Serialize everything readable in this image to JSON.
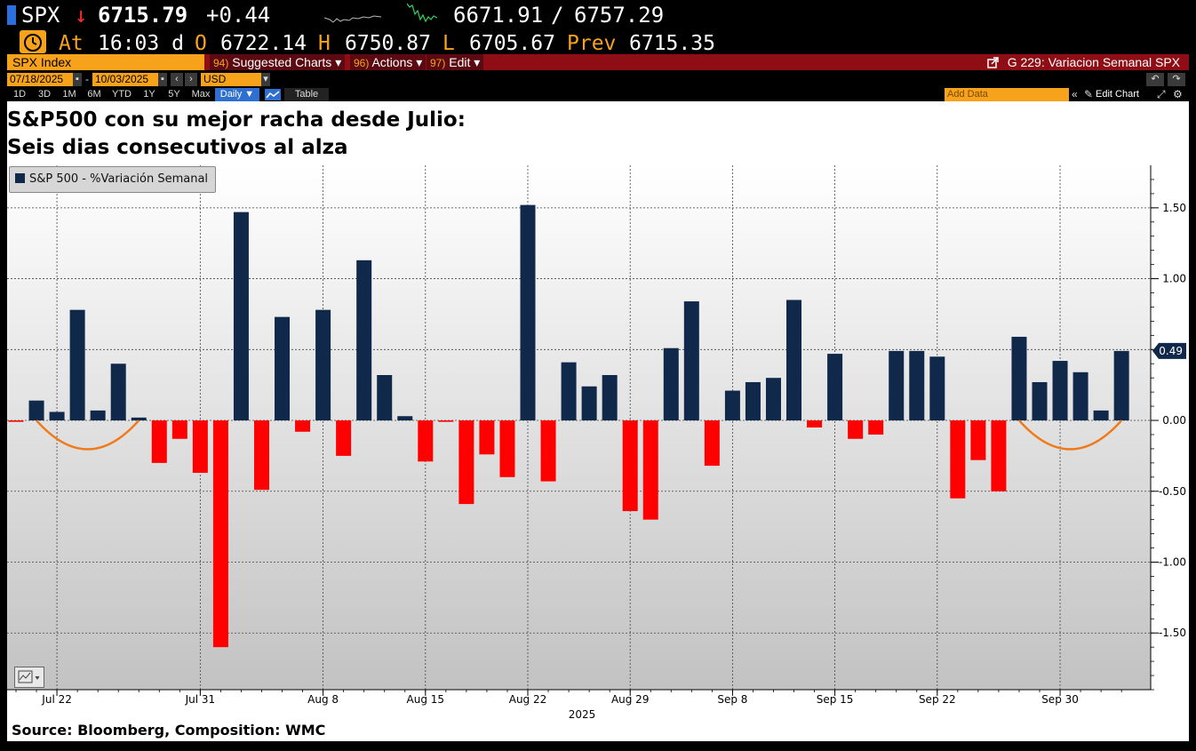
{
  "quote": {
    "ticker": "SPX",
    "arrow": "↓",
    "last": "6715.79",
    "change": "+0.44",
    "range_low": "6671.91",
    "range_sep": "/",
    "range_high": "6757.29",
    "at_label": "At",
    "time": "16:03 d",
    "open_label": "O",
    "open": "6722.14",
    "high_label": "H",
    "high": "6750.87",
    "low_label": "L",
    "low": "6705.67",
    "prev_label": "Prev",
    "prev": "6715.35"
  },
  "toolbar": {
    "security": "SPX Index",
    "suggested_num": "94)",
    "suggested_label": "Suggested Charts ▾",
    "actions_num": "96)",
    "actions_label": "Actions ▾",
    "edit_num": "97)",
    "edit_label": "Edit ▾",
    "chart_title": "G 229: Variacion Semanal SPX"
  },
  "dates": {
    "start": "07/18/2025",
    "sep": "-",
    "end": "10/03/2025",
    "currency": "USD"
  },
  "range_buttons": [
    "1D",
    "3D",
    "1M",
    "6M",
    "YTD",
    "1Y",
    "5Y",
    "Max"
  ],
  "periodicity": "Daily ▼",
  "table_label": "Table",
  "add_data_placeholder": "Add Data",
  "edit_chart_label": "Edit Chart",
  "headline_line1": "S&P500 con su mejor racha desde Julio:",
  "headline_line2": "Seis dias consecutivos al alza",
  "source": "Source: Bloomberg, Composition: WMC",
  "colors": {
    "positive": "#10284a",
    "negative": "#ff0000",
    "annotation": "#f07a1a",
    "accent": "#f7a21b",
    "toolbar": "#8f0e16"
  },
  "chart_data": {
    "type": "bar",
    "title": "",
    "xlabel": "2025",
    "ylabel": "",
    "legend": [
      "S&P 500 - %Variación Semanal"
    ],
    "legend_position": "top-left",
    "ylim": [
      -1.9,
      1.8
    ],
    "yticks": [
      1.5,
      1.0,
      0.5,
      0.0,
      -0.5,
      -1.0,
      -1.5
    ],
    "ytick_labels": [
      "1.50",
      "1.00",
      "0.50",
      "0.00",
      "-0.50",
      "-1.00",
      "-1.50"
    ],
    "last_value_label": "0.49",
    "grid": true,
    "xtick_labels": [
      {
        "label": "Jul 22",
        "index": 2
      },
      {
        "label": "Jul 31",
        "index": 9
      },
      {
        "label": "Aug 8",
        "index": 15
      },
      {
        "label": "Aug 15",
        "index": 20
      },
      {
        "label": "Aug 22",
        "index": 25
      },
      {
        "label": "Aug 29",
        "index": 30
      },
      {
        "label": "Sep 8",
        "index": 35
      },
      {
        "label": "Sep 15",
        "index": 40
      },
      {
        "label": "Sep 22",
        "index": 45
      },
      {
        "label": "Sep 30",
        "index": 51
      }
    ],
    "series": [
      {
        "name": "S&P 500 - %Variación Semanal",
        "values": [
          -0.01,
          0.14,
          0.06,
          0.78,
          0.07,
          0.4,
          0.02,
          -0.3,
          -0.13,
          -0.37,
          -1.6,
          1.47,
          -0.49,
          0.73,
          -0.08,
          0.78,
          -0.25,
          1.13,
          0.32,
          0.03,
          -0.29,
          -0.01,
          -0.59,
          -0.24,
          -0.4,
          1.52,
          -0.43,
          0.41,
          0.24,
          0.32,
          -0.64,
          -0.7,
          0.51,
          0.84,
          -0.32,
          0.21,
          0.27,
          0.3,
          0.85,
          -0.05,
          0.47,
          -0.13,
          -0.1,
          0.49,
          0.49,
          0.45,
          -0.55,
          -0.28,
          -0.5,
          0.59,
          0.27,
          0.42,
          0.34,
          0.07,
          0.49
        ]
      }
    ],
    "annotations": [
      {
        "type": "arc",
        "from_index": 1,
        "to_index": 6,
        "description": "streak"
      },
      {
        "type": "arc",
        "from_index": 49,
        "to_index": 54,
        "description": "streak"
      }
    ]
  }
}
